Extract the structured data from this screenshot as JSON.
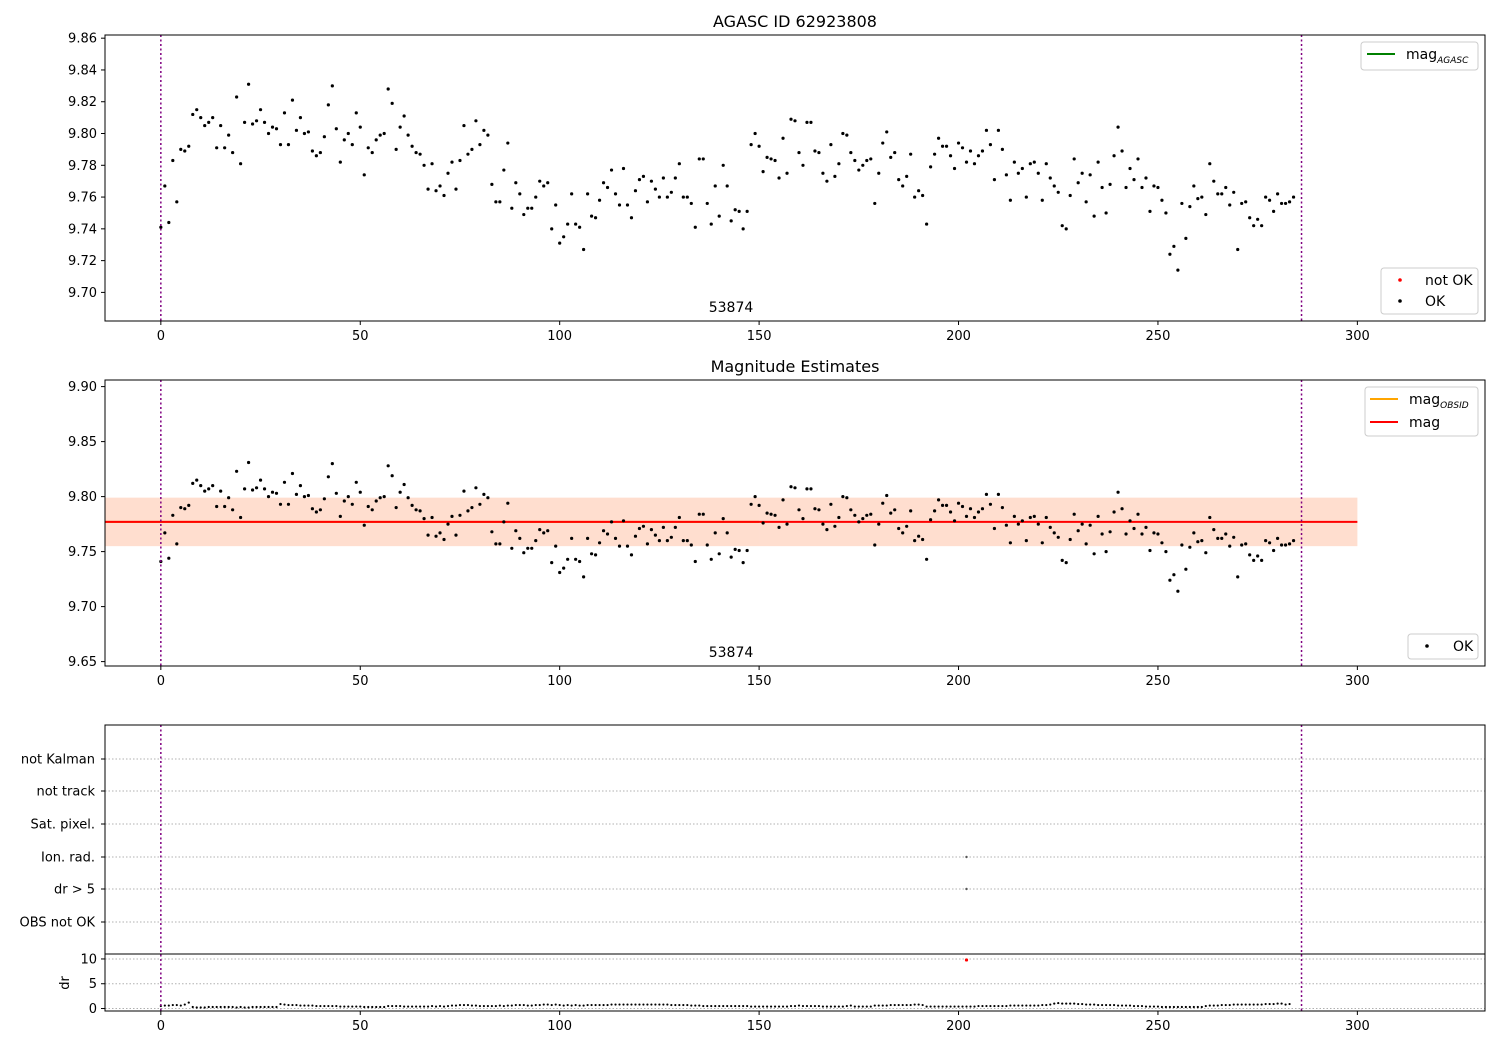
{
  "chart_data": [
    {
      "type": "scatter",
      "title": "AGASC ID 62923808",
      "annotation": "53874",
      "xlim": [
        -14,
        332
      ],
      "ylim": [
        9.682,
        9.862
      ],
      "xticks": [
        0,
        50,
        100,
        150,
        200,
        250,
        300
      ],
      "yticks": [
        9.7,
        9.72,
        9.74,
        9.76,
        9.78,
        9.8,
        9.82,
        9.84,
        9.86
      ],
      "vlines": [
        0,
        286
      ],
      "legend_upper": {
        "line_label": "mag",
        "line_sub": "AGASC",
        "line_color": "#008000"
      },
      "legend_lower": [
        {
          "label": "not OK",
          "color": "#ff0000"
        },
        {
          "label": "OK",
          "color": "#000000"
        }
      ],
      "series": [
        {
          "name": "OK",
          "color": "#000000",
          "x_start": 0,
          "x_step": 1,
          "values": [
            9.741,
            9.767,
            9.744,
            9.783,
            9.757,
            9.79,
            9.789,
            9.792,
            9.812,
            9.815,
            9.81,
            9.805,
            9.807,
            9.81,
            9.791,
            9.805,
            9.791,
            9.799,
            9.788,
            9.823,
            9.781,
            9.807,
            9.831,
            9.806,
            9.808,
            9.815,
            9.807,
            9.8,
            9.804,
            9.803,
            9.793,
            9.813,
            9.793,
            9.821,
            9.802,
            9.81,
            9.8,
            9.801,
            9.789,
            9.786,
            9.788,
            9.798,
            9.818,
            9.83,
            9.803,
            9.782,
            9.796,
            9.8,
            9.793,
            9.813,
            9.804,
            9.774,
            9.791,
            9.788,
            9.796,
            9.799,
            9.8,
            9.828,
            9.819,
            9.79,
            9.804,
            9.811,
            9.799,
            9.792,
            9.788,
            9.787,
            9.78,
            9.765,
            9.781,
            9.764,
            9.767,
            9.761,
            9.775,
            9.782,
            9.765,
            9.783,
            9.805,
            9.787,
            9.79,
            9.808,
            9.793,
            9.802,
            9.799,
            9.768,
            9.757,
            9.757,
            9.777,
            9.794,
            9.753,
            9.769,
            9.762,
            9.749,
            9.753,
            9.753,
            9.76,
            9.77,
            9.767,
            9.769,
            9.74,
            9.755,
            9.731,
            9.735,
            9.743,
            9.762,
            9.743,
            9.741,
            9.727,
            9.762,
            9.748,
            9.747,
            9.758,
            9.769,
            9.766,
            9.777,
            9.762,
            9.755,
            9.778,
            9.755,
            9.747,
            9.764,
            9.771,
            9.773,
            9.757,
            9.77,
            9.765,
            9.76,
            9.772,
            9.76,
            9.763,
            9.772,
            9.781,
            9.76,
            9.76,
            9.756,
            9.741,
            9.784,
            9.784,
            9.756,
            9.743,
            9.767,
            9.748,
            9.78,
            9.767,
            9.745,
            9.752,
            9.751,
            9.74,
            9.751,
            9.793,
            9.8,
            9.792,
            9.776,
            9.785,
            9.784,
            9.783,
            9.772,
            9.797,
            9.775,
            9.809,
            9.808,
            9.788,
            9.78,
            9.807,
            9.807,
            9.789,
            9.788,
            9.775,
            9.77,
            9.793,
            9.773,
            9.781,
            9.8,
            9.799,
            9.788,
            9.783,
            9.777,
            9.78,
            9.783,
            9.784,
            9.756,
            9.775,
            9.794,
            9.801,
            9.785,
            9.788,
            9.771,
            9.767,
            9.773,
            9.787,
            9.76,
            9.764,
            9.761,
            9.743,
            9.779,
            9.787,
            9.797,
            9.792,
            9.792,
            9.786,
            9.778,
            9.794,
            9.791,
            9.782,
            9.789,
            9.781,
            9.786,
            9.789,
            9.802,
            9.793,
            9.771,
            9.802,
            9.79,
            9.774,
            9.758,
            9.782,
            9.775,
            9.778,
            9.76,
            9.781,
            9.782,
            9.775,
            9.758,
            9.781,
            9.772,
            9.767,
            9.763,
            9.742,
            9.74,
            9.761,
            9.784,
            9.769,
            9.775,
            9.757,
            9.774,
            9.748,
            9.782,
            9.766,
            9.75,
            9.768,
            9.786,
            9.804,
            9.789,
            9.766,
            9.778,
            9.771,
            9.784,
            9.766,
            9.772,
            9.751,
            9.767,
            9.766,
            9.758,
            9.75,
            9.724,
            9.729,
            9.714,
            9.756,
            9.734,
            9.754,
            9.767,
            9.759,
            9.76,
            9.749,
            9.781,
            9.77,
            9.762,
            9.762,
            9.766,
            9.755,
            9.763,
            9.727,
            9.756,
            9.757,
            9.747,
            9.742,
            9.746,
            9.742,
            9.76,
            9.758,
            9.751,
            9.762,
            9.756,
            9.756,
            9.757,
            9.76
          ]
        }
      ]
    },
    {
      "type": "scatter",
      "title": "Magnitude Estimates",
      "annotation": "53874",
      "xlim": [
        -14,
        332
      ],
      "ylim": [
        9.646,
        9.906
      ],
      "xticks": [
        0,
        50,
        100,
        150,
        200,
        250,
        300
      ],
      "yticks": [
        9.65,
        9.7,
        9.75,
        9.8,
        9.85,
        9.9
      ],
      "vlines": [
        0,
        286
      ],
      "hlines": [
        {
          "name": "mag OBSID",
          "y": 9.777,
          "x_range": [
            -14,
            150
          ],
          "color": "#ffa500"
        },
        {
          "name": "mag",
          "y": 9.777,
          "x_range": [
            -14,
            300
          ],
          "color": "#ff0000"
        }
      ],
      "bands": [
        {
          "y_range": [
            9.755,
            9.799
          ],
          "x_range": [
            -14,
            300
          ],
          "color": "#ffc0cb"
        },
        {
          "y_range": [
            9.755,
            9.799
          ],
          "x_range": [
            -14,
            150
          ],
          "color": "#ffdab9"
        },
        {
          "y_range": [
            9.755,
            9.799
          ],
          "x_range": [
            150,
            300
          ],
          "color": "#ffdab9"
        }
      ],
      "legend_upper": [
        {
          "label": "mag",
          "sub": "OBSID",
          "color": "#ffa500"
        },
        {
          "label": "mag",
          "sub": "",
          "color": "#ff0000"
        }
      ],
      "legend_lower": [
        {
          "label": "OK",
          "color": "#000000"
        }
      ],
      "series": [
        {
          "name": "OK",
          "same_as": "AGASC ID 62923808"
        }
      ]
    },
    {
      "type": "scatter",
      "flags_panel": {
        "labels": [
          "not Kalman",
          "not track",
          "Sat. pixel.",
          "Ion. rad.",
          "dr > 5",
          "OBS not OK"
        ],
        "flagged": [
          {
            "flag": "Ion. rad.",
            "x": 202
          },
          {
            "flag": "dr > 5",
            "x": 202
          }
        ]
      },
      "dr_panel": {
        "ylabel": "dr",
        "ylim": [
          -0.5,
          11
        ],
        "yticks": [
          0,
          5,
          10
        ],
        "xticks": [
          0,
          50,
          100,
          150,
          200,
          250,
          300
        ],
        "xlim": [
          -14,
          332
        ],
        "outlier": {
          "x": 202,
          "y": 9.8,
          "color": "#ff0000"
        },
        "values": [
          0.5,
          0.6,
          0.6,
          0.7,
          0.7,
          0.6,
          0.8,
          1.2,
          0.3,
          0.2,
          0.2,
          0.2,
          0.3,
          0.3,
          0.3,
          0.3,
          0.3,
          0.3,
          0.3,
          0.2,
          0.3,
          0.2,
          0.2,
          0.3,
          0.3,
          0.3,
          0.3,
          0.3,
          0.3,
          0.3,
          0.9,
          0.8,
          0.7,
          0.7,
          0.7,
          0.6,
          0.6,
          0.6,
          0.6,
          0.5,
          0.5,
          0.5,
          0.5,
          0.5,
          0.5,
          0.4,
          0.4,
          0.4,
          0.4,
          0.4,
          0.4,
          0.3,
          0.3,
          0.3,
          0.3,
          0.3,
          0.3,
          0.5,
          0.5,
          0.5,
          0.5,
          0.4,
          0.4,
          0.4,
          0.4,
          0.4,
          0.4,
          0.4,
          0.5,
          0.4,
          0.5,
          0.4,
          0.5,
          0.6,
          0.6,
          0.7,
          0.7,
          0.7,
          0.6,
          0.6,
          0.5,
          0.5,
          0.5,
          0.5,
          0.5,
          0.6,
          0.5,
          0.6,
          0.6,
          0.7,
          0.7,
          0.7,
          0.6,
          0.6,
          0.7,
          0.7,
          0.8,
          0.8,
          0.7,
          0.8,
          0.7,
          0.6,
          0.7,
          0.6,
          0.7,
          0.6,
          0.6,
          0.7,
          0.7,
          0.7,
          0.7,
          0.7,
          0.7,
          0.8,
          0.8,
          0.8,
          0.8,
          0.8,
          0.8,
          0.8,
          0.8,
          0.8,
          0.8,
          0.8,
          0.8,
          0.8,
          0.8,
          0.8,
          0.7,
          0.7,
          0.7,
          0.7,
          0.7,
          0.6,
          0.6,
          0.6,
          0.5,
          0.5,
          0.5,
          0.5,
          0.5,
          0.5,
          0.5,
          0.5,
          0.5,
          0.5,
          0.5,
          0.5,
          0.4,
          0.4,
          0.4,
          0.4,
          0.4,
          0.4,
          0.4,
          0.4,
          0.4,
          0.4,
          0.5,
          0.5,
          0.6,
          0.5,
          0.5,
          0.5,
          0.5,
          0.5,
          0.4,
          0.4,
          0.4,
          0.4,
          0.4,
          0.4,
          0.5,
          0.6,
          0.4,
          0.4,
          0.4,
          0.4,
          0.4,
          0.6,
          0.6,
          0.6,
          0.6,
          0.7,
          0.7,
          0.7,
          0.7,
          0.7,
          0.7,
          0.8,
          0.8,
          0.7,
          0.4,
          0.4,
          0.4,
          0.4,
          0.4,
          0.4,
          0.4,
          0.4,
          0.4,
          0.4,
          0.4,
          0.4,
          0.4,
          0.5,
          0.5,
          0.5,
          0.5,
          0.5,
          0.5,
          0.5,
          0.5,
          0.6,
          0.6,
          0.6,
          0.6,
          0.6,
          0.6,
          0.6,
          0.6,
          0.7,
          0.7,
          0.8,
          1.0,
          1.1,
          1.0,
          1.0,
          1.0,
          1.0,
          0.9,
          0.9,
          0.8,
          0.8,
          0.8,
          0.7,
          0.7,
          0.7,
          0.7,
          0.7,
          0.6,
          0.6,
          0.6,
          0.6,
          0.5,
          0.5,
          0.5,
          0.4,
          0.4,
          0.4,
          0.4,
          0.3,
          0.3,
          0.3,
          0.3,
          0.3,
          0.3,
          0.3,
          0.3,
          0.3,
          0.3,
          0.3,
          0.5,
          0.6,
          0.6,
          0.6,
          0.7,
          0.7,
          0.7,
          0.8,
          0.8,
          0.8,
          0.8,
          0.8,
          0.8,
          0.8,
          0.8,
          0.9,
          0.9,
          0.9,
          1.0,
          1.0,
          0.8,
          0.9
        ]
      }
    }
  ]
}
